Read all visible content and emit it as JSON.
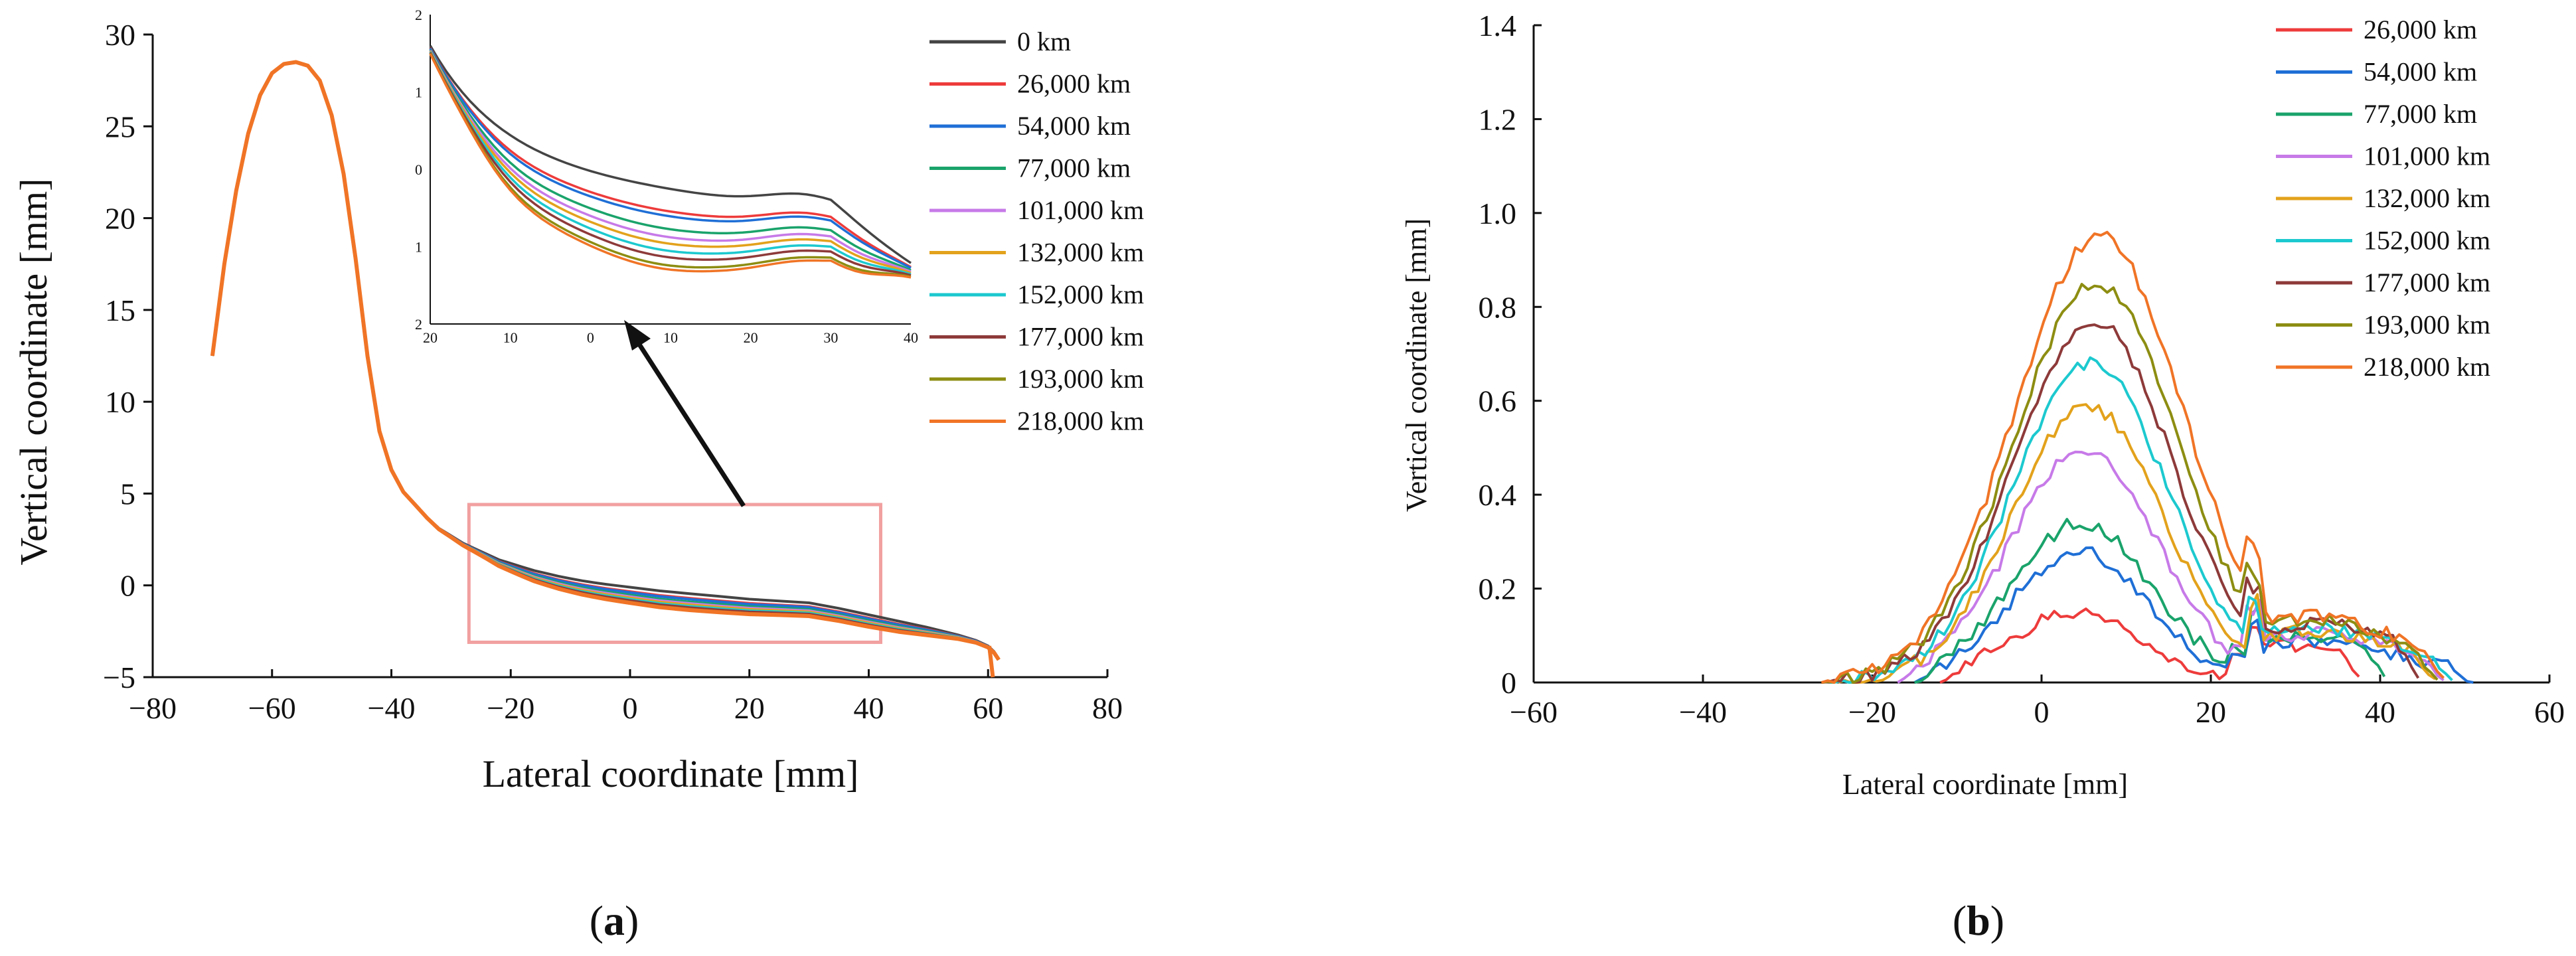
{
  "colors": {
    "0 km": "#444444",
    "26,000 km": "#ee3b3b",
    "54,000 km": "#1f6fd6",
    "77,000 km": "#1aa36b",
    "101,000 km": "#c77ae8",
    "132,000 km": "#e3a21c",
    "152,000 km": "#1cc9cf",
    "177,000 km": "#8e3a3a",
    "193,000 km": "#8d8d12",
    "218,000 km": "#f07426",
    "highlight_box": "#f2a0a0",
    "arrow": "#111111"
  },
  "panel_labels": {
    "a": {
      "open": "(",
      "letter": "a",
      "close": ")"
    },
    "b": {
      "open": "(",
      "letter": "b",
      "close": ")"
    }
  },
  "chart_data": [
    {
      "id": "a",
      "type": "line",
      "title": "",
      "xlabel": "Lateral coordinate [mm]",
      "ylabel": "Vertical coordinate [mm]",
      "xlim": [
        -80,
        80
      ],
      "ylim": [
        -5,
        30
      ],
      "xticks": [
        -80,
        -60,
        -40,
        -20,
        0,
        20,
        40,
        60,
        80
      ],
      "yticks": [
        -5,
        0,
        5,
        10,
        15,
        20,
        25,
        30
      ],
      "xtick_labels": [
        "−80",
        "−60",
        "−40",
        "−20",
        "0",
        "20",
        "40",
        "60",
        "80"
      ],
      "ytick_labels": [
        "−5",
        "0",
        "5",
        "10",
        "15",
        "20",
        "25",
        "30"
      ],
      "legend_position": "top-right",
      "highlight_box": {
        "x": [
          -27,
          42
        ],
        "y": [
          -3.1,
          4.4
        ]
      },
      "base_profile": {
        "x": [
          -70,
          -68,
          -66,
          -64,
          -62,
          -60,
          -58,
          -56,
          -54,
          -52,
          -50,
          -48,
          -46,
          -44,
          -42,
          -40,
          -38,
          -36,
          -34,
          -32,
          -30,
          -28,
          -26,
          -24,
          -22,
          -20,
          -18,
          -16,
          -14,
          -12,
          -10,
          -8,
          -6,
          -4,
          -2,
          0,
          5,
          10,
          15,
          20,
          25,
          30,
          35,
          40,
          45,
          50,
          55,
          58,
          60,
          61,
          61.8
        ],
        "y": [
          12.5,
          17.5,
          21.5,
          24.6,
          26.7,
          27.9,
          28.4,
          28.5,
          28.3,
          27.5,
          25.6,
          22.4,
          17.8,
          12.5,
          8.4,
          6.3,
          5.1,
          4.4,
          3.7,
          3.1,
          2.7,
          2.3,
          2.0,
          1.7,
          1.4,
          1.2,
          1.0,
          0.8,
          0.65,
          0.5,
          0.37,
          0.25,
          0.15,
          0.06,
          -0.02,
          -0.1,
          -0.3,
          -0.45,
          -0.6,
          -0.75,
          -0.85,
          -0.95,
          -1.25,
          -1.6,
          -1.95,
          -2.3,
          -2.7,
          -3.0,
          -3.3,
          -3.6,
          -4.0
        ]
      },
      "series": [
        {
          "name": "0 km",
          "wear": 0
        },
        {
          "name": "26,000 km",
          "wear": 0.28
        },
        {
          "name": "54,000 km",
          "wear": 0.34
        },
        {
          "name": "77,000 km",
          "wear": 0.5
        },
        {
          "name": "101,000 km",
          "wear": 0.6
        },
        {
          "name": "132,000 km",
          "wear": 0.68
        },
        {
          "name": "152,000 km",
          "wear": 0.77
        },
        {
          "name": "177,000 km",
          "wear": 0.85
        },
        {
          "name": "193,000 km",
          "wear": 0.95
        },
        {
          "name": "218,000 km",
          "wear": 1.0
        }
      ],
      "inset": {
        "xlim": [
          -20,
          40
        ],
        "ylim": [
          -2,
          2
        ],
        "xticks": [
          -20,
          -10,
          0,
          10,
          20,
          30,
          40
        ],
        "yticks": [
          -2,
          -1,
          0,
          1,
          2
        ],
        "xtick_labels": [
          "20",
          "10",
          "0",
          "10",
          "20",
          "30",
          "40"
        ],
        "ytick_labels": [
          "2",
          "1",
          "0",
          "1",
          "2"
        ]
      }
    },
    {
      "id": "b",
      "type": "line",
      "title": "",
      "xlabel": "Lateral coordinate [mm]",
      "ylabel": "Vertical coordinate  [mm]",
      "xlim": [
        -60,
        60
      ],
      "ylim": [
        0,
        1.4
      ],
      "xticks": [
        -60,
        -40,
        -20,
        0,
        20,
        40,
        60
      ],
      "yticks": [
        0,
        0.2,
        0.4,
        0.6,
        0.8,
        1.0,
        1.2,
        1.4
      ],
      "xtick_labels": [
        "−60",
        "−40",
        "−20",
        "0",
        "20",
        "40",
        "60"
      ],
      "ytick_labels": [
        "0",
        "0.2",
        "0.4",
        "0.6",
        "0.8",
        "1.0",
        "1.2",
        "1.4"
      ],
      "legend_position": "top-right",
      "series": [
        {
          "name": "26,000 km",
          "peak": 0.15,
          "left_start": -12,
          "right_end": 38
        },
        {
          "name": "54,000 km",
          "peak": 0.28,
          "left_start": -15,
          "right_end": 51
        },
        {
          "name": "77,000 km",
          "peak": 0.34,
          "left_start": -15,
          "right_end": 41
        },
        {
          "name": "101,000 km",
          "peak": 0.5,
          "left_start": -17,
          "right_end": 48
        },
        {
          "name": "132,000 km",
          "peak": 0.59,
          "left_start": -24,
          "right_end": 47
        },
        {
          "name": "152,000 km",
          "peak": 0.68,
          "left_start": -25,
          "right_end": 49
        },
        {
          "name": "177,000 km",
          "peak": 0.77,
          "left_start": -26,
          "right_end": 45
        },
        {
          "name": "193,000 km",
          "peak": 0.85,
          "left_start": -26,
          "right_end": 47
        },
        {
          "name": "218,000 km",
          "peak": 0.95,
          "left_start": -26,
          "right_end": 48
        }
      ]
    }
  ]
}
